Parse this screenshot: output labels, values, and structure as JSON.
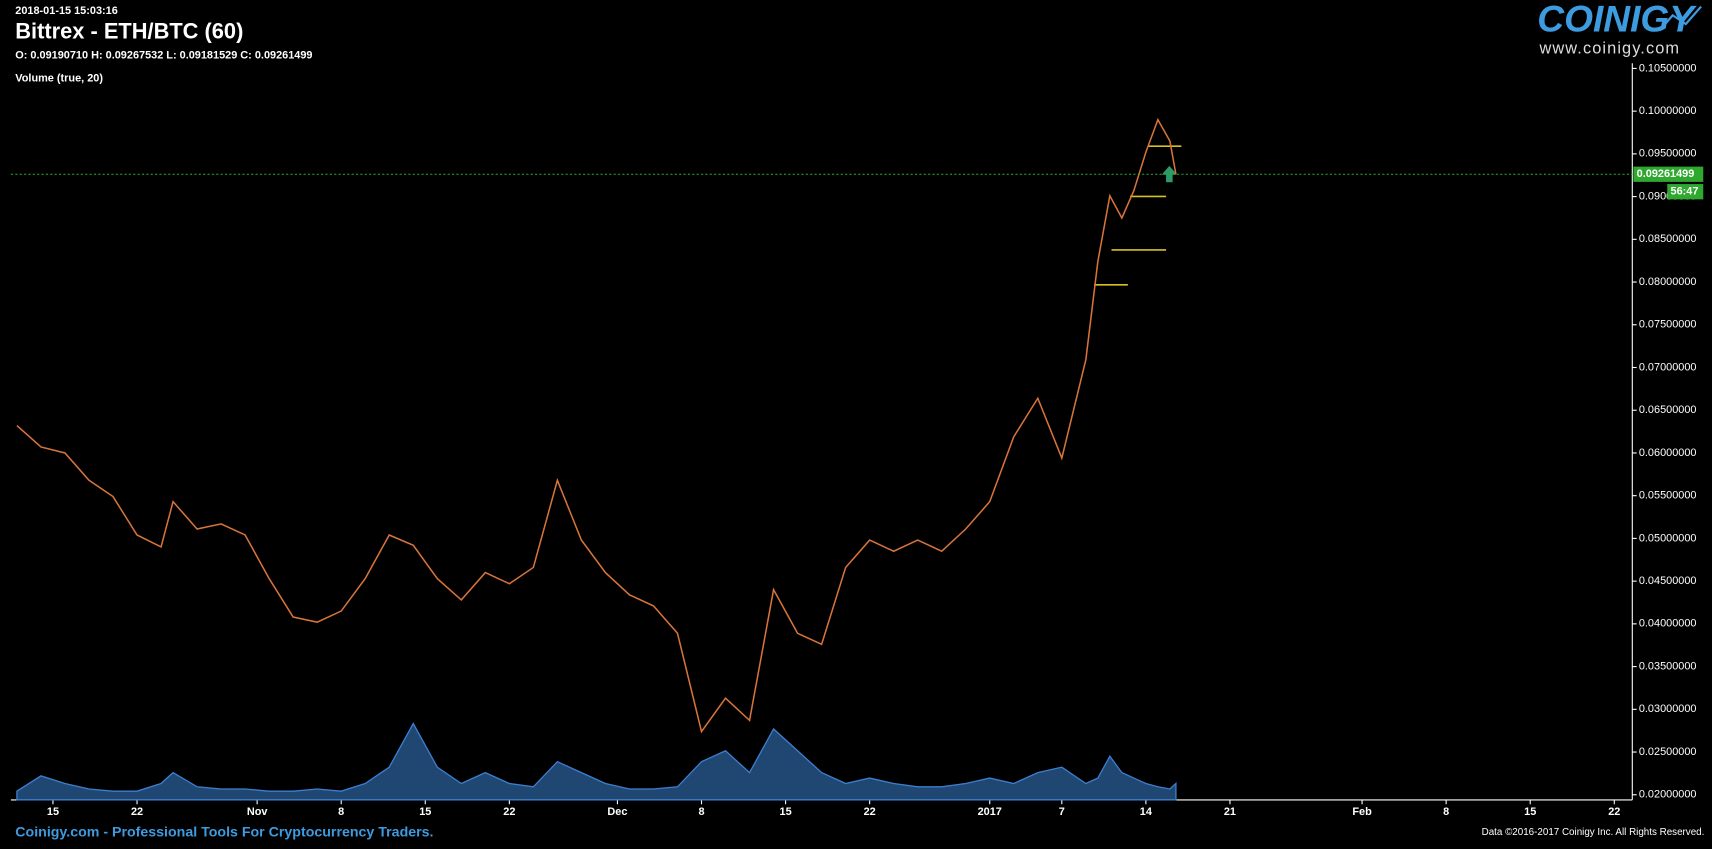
{
  "chart_data": {
    "type": "line",
    "timestamp": "2018-01-15 15:03:16",
    "title": "Bittrex - ETH/BTC (60)",
    "subtitle": "O: 0.09190710 H: 0.09267532 L: 0.09181529 C: 0.09261499",
    "logo": "COINIGY",
    "logo_url": "www.coinigy.com",
    "footer_left": "Coinigy.com - Professional Tools For Cryptocurrency Traders.",
    "footer_right": "Data ©2016-2017 Coinigy Inc. All Rights Reserved.",
    "last_price": {
      "value": 0.09261499,
      "label": "0.09261499"
    },
    "countdown": "56:47",
    "x": [
      -3,
      -1,
      1,
      3,
      5,
      7,
      9,
      10,
      12,
      14,
      16,
      18,
      20,
      22,
      24,
      26,
      28,
      30,
      32,
      34,
      36,
      38,
      40,
      42,
      44,
      46,
      48,
      50,
      52,
      54,
      56,
      58,
      60,
      62,
      64,
      66,
      68,
      70,
      72,
      74,
      76,
      78,
      80,
      82,
      84,
      86,
      87,
      88,
      89,
      90,
      91,
      92,
      93,
      93.5
    ],
    "series": [
      {
        "color": "#d8743a",
        "values": [
          0.0632,
          0.0607,
          0.06,
          0.0568,
          0.0549,
          0.0504,
          0.049,
          0.0543,
          0.0511,
          0.0517,
          0.0504,
          0.0453,
          0.0408,
          0.0402,
          0.0415,
          0.0453,
          0.0504,
          0.0492,
          0.0453,
          0.0428,
          0.046,
          0.0447,
          0.0466,
          0.0568,
          0.0498,
          0.046,
          0.0434,
          0.0421,
          0.0389,
          0.0274,
          0.0313,
          0.0287,
          0.044,
          0.0389,
          0.0376,
          0.0466,
          0.0498,
          0.0485,
          0.0498,
          0.0485,
          0.0511,
          0.0543,
          0.0619,
          0.0664,
          0.0594,
          0.0709,
          0.0824,
          0.0901,
          0.0875,
          0.0907,
          0.0952,
          0.099,
          0.0965,
          0.09261499
        ]
      },
      {
        "name": "Volume (true, 20)",
        "color": "#3b7fd0",
        "axis": "y2",
        "style": "area",
        "values": [
          8,
          22,
          15,
          10,
          8,
          8,
          15,
          25,
          12,
          10,
          10,
          8,
          8,
          10,
          8,
          15,
          30,
          70,
          30,
          15,
          25,
          15,
          12,
          35,
          25,
          15,
          10,
          10,
          12,
          35,
          45,
          25,
          65,
          45,
          25,
          15,
          20,
          15,
          12,
          12,
          15,
          20,
          15,
          25,
          30,
          15,
          20,
          40,
          25,
          20,
          15,
          12,
          10,
          15
        ]
      }
    ],
    "xlim": [
      -3.5,
      131.5
    ],
    "xticks": [
      {
        "value": 0,
        "label": "15"
      },
      {
        "value": 7,
        "label": "22"
      },
      {
        "value": 17,
        "label": "Nov"
      },
      {
        "value": 24,
        "label": "8"
      },
      {
        "value": 31,
        "label": "15"
      },
      {
        "value": 38,
        "label": "22"
      },
      {
        "value": 47,
        "label": "Dec"
      },
      {
        "value": 54,
        "label": "8"
      },
      {
        "value": 61,
        "label": "15"
      },
      {
        "value": 68,
        "label": "22"
      },
      {
        "value": 78,
        "label": "2017"
      },
      {
        "value": 84,
        "label": "7"
      },
      {
        "value": 91,
        "label": "14"
      },
      {
        "value": 98,
        "label": "21"
      },
      {
        "value": 109,
        "label": "Feb"
      },
      {
        "value": 116,
        "label": "8"
      },
      {
        "value": 123,
        "label": "15"
      },
      {
        "value": 130,
        "label": "22"
      }
    ],
    "ylim": [
      0.0194,
      0.1056
    ],
    "yticks": [
      {
        "value": 0.02,
        "label": "0.02000000"
      },
      {
        "value": 0.025,
        "label": "0.02500000"
      },
      {
        "value": 0.03,
        "label": "0.03000000"
      },
      {
        "value": 0.035,
        "label": "0.03500000"
      },
      {
        "value": 0.04,
        "label": "0.04000000"
      },
      {
        "value": 0.045,
        "label": "0.04500000"
      },
      {
        "value": 0.05,
        "label": "0.05000000"
      },
      {
        "value": 0.055,
        "label": "0.05500000"
      },
      {
        "value": 0.06,
        "label": "0.06000000"
      },
      {
        "value": 0.065,
        "label": "0.06500000"
      },
      {
        "value": 0.07,
        "label": "0.07000000"
      },
      {
        "value": 0.075,
        "label": "0.07500000"
      },
      {
        "value": 0.08,
        "label": "0.08000000"
      },
      {
        "value": 0.085,
        "label": "0.08500000"
      },
      {
        "value": 0.09,
        "label": "0.09000000"
      },
      {
        "value": 0.095,
        "label": "0.09500000"
      },
      {
        "value": 0.1,
        "label": "0.10000000"
      },
      {
        "value": 0.105,
        "label": "0.10500000"
      }
    ],
    "y2lim": [
      0,
      675
    ]
  }
}
